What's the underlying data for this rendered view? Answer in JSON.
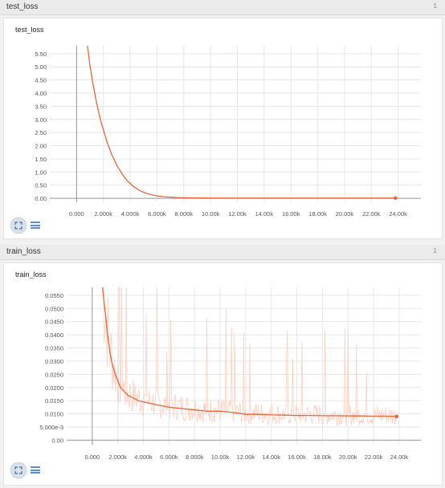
{
  "charts": [
    {
      "header_label": "test_loss",
      "header_count": "1",
      "title": "test_loss"
    },
    {
      "header_label": "train_loss",
      "header_count": "1",
      "title": "train_loss"
    }
  ],
  "icons": {
    "fit_domain": "fit-domain-icon",
    "toggle_log": "list-icon"
  },
  "colors": {
    "line": "#e8643c",
    "raw_line": "#fbd0c0",
    "grid": "#e6e6e6",
    "axis": "#999999"
  },
  "chart_data": [
    {
      "type": "line",
      "title": "test_loss",
      "xlabel": "",
      "ylabel": "",
      "xlim": [
        -2000,
        25700
      ],
      "ylim": [
        -0.15,
        5.8
      ],
      "grid": true,
      "x_ticks": [
        "0.000",
        "2.000k",
        "4.000k",
        "6.000k",
        "8.000k",
        "10.00k",
        "12.00k",
        "14.00k",
        "16.00k",
        "18.00k",
        "20.00k",
        "22.00k",
        "24.00k"
      ],
      "y_ticks": [
        "0.00",
        "0.50",
        "1.00",
        "1.50",
        "2.00",
        "2.50",
        "3.00",
        "3.50",
        "4.00",
        "4.50",
        "5.00",
        "5.50"
      ],
      "series": [
        {
          "x": [
            800,
            1000,
            1200,
            1500,
            1800,
            2000,
            2300,
            2600,
            3000,
            3400,
            3800,
            4200,
            4700,
            5200,
            5800,
            6500,
            7500,
            9000,
            11000,
            14000,
            17000,
            20000,
            22000,
            23800
          ],
          "values": [
            5.85,
            5.05,
            4.4,
            3.6,
            2.95,
            2.6,
            2.1,
            1.7,
            1.25,
            0.92,
            0.66,
            0.47,
            0.3,
            0.19,
            0.11,
            0.06,
            0.03,
            0.015,
            0.01,
            0.01,
            0.01,
            0.01,
            0.01,
            0.01
          ]
        }
      ]
    },
    {
      "type": "line",
      "title": "train_loss",
      "xlabel": "",
      "ylabel": "",
      "xlim": [
        -2000,
        25700
      ],
      "ylim": [
        -0.0017,
        0.058
      ],
      "grid": true,
      "x_ticks": [
        "0.000",
        "2.000k",
        "4.000k",
        "6.000k",
        "8.000k",
        "10.00k",
        "12.00k",
        "14.00k",
        "16.00k",
        "18.00k",
        "20.00k",
        "22.00k",
        "24.00k"
      ],
      "y_ticks": [
        "0.00",
        "5.000e-3",
        "0.0100",
        "0.0150",
        "0.0200",
        "0.0250",
        "0.0300",
        "0.0350",
        "0.0400",
        "0.0450",
        "0.0500",
        "0.0550"
      ],
      "series": [
        {
          "x": [
            800,
            1000,
            1200,
            1400,
            1600,
            1800,
            2000,
            2200,
            2500,
            2800,
            3200,
            3600,
            4000,
            4500,
            5000,
            5500,
            6000,
            7000,
            8000,
            9000,
            10000,
            11000,
            12000,
            13000,
            14000,
            15000,
            16000,
            17000,
            18000,
            19000,
            20000,
            21000,
            22000,
            23000,
            23800
          ],
          "values": [
            0.058,
            0.049,
            0.04,
            0.033,
            0.028,
            0.025,
            0.0225,
            0.02,
            0.0185,
            0.017,
            0.016,
            0.015,
            0.0145,
            0.014,
            0.0135,
            0.013,
            0.0125,
            0.012,
            0.0115,
            0.011,
            0.011,
            0.0105,
            0.0098,
            0.0098,
            0.0096,
            0.0095,
            0.0094,
            0.0094,
            0.0093,
            0.0093,
            0.0092,
            0.0092,
            0.0091,
            0.0091,
            0.009
          ]
        }
      ]
    }
  ]
}
